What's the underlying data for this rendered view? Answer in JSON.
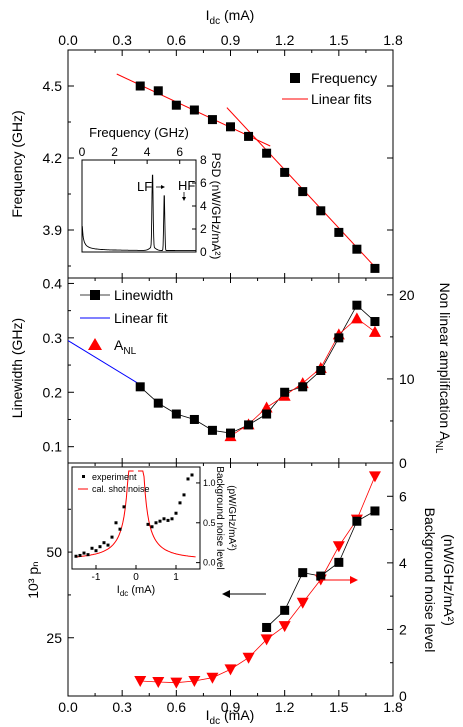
{
  "figure": {
    "top_axis_label": "I_dc (mA)",
    "bottom_axis_label": "I_dc (mA)",
    "x_ticks": [
      "0.0",
      "0.3",
      "0.6",
      "0.9",
      "1.2",
      "1.5",
      "1.8"
    ]
  },
  "chart_data": [
    {
      "type": "scatter",
      "panel": "top",
      "ylabel": "Frequency (GHz)",
      "xlim": [
        0,
        1.8
      ],
      "ylim": [
        3.7,
        4.65
      ],
      "y_ticks": [
        3.9,
        4.2,
        4.5
      ],
      "legend": [
        "Frequency",
        "Linear fits"
      ],
      "legend_position": "top-right",
      "series": [
        {
          "name": "Frequency",
          "x": [
            0.4,
            0.5,
            0.6,
            0.7,
            0.8,
            0.9,
            1.0,
            1.1,
            1.2,
            1.3,
            1.4,
            1.5,
            1.6,
            1.7
          ],
          "y": [
            4.5,
            4.48,
            4.42,
            4.4,
            4.36,
            4.33,
            4.29,
            4.22,
            4.14,
            4.06,
            3.98,
            3.89,
            3.82,
            3.74
          ]
        }
      ],
      "fits": [
        {
          "name": "Linear fits",
          "x": [
            0.27,
            1.12
          ],
          "y": [
            4.55,
            4.25
          ]
        },
        {
          "name": "Linear fits",
          "x": [
            0.88,
            1.72
          ],
          "y": [
            4.41,
            3.73
          ]
        }
      ],
      "inset": {
        "type": "line",
        "xlabel": "Frequency (GHz)",
        "ylabel": "PSD (nW/GHz/mA²)",
        "xlim": [
          0,
          7
        ],
        "ylim": [
          0,
          8
        ],
        "x_ticks": [
          "0",
          "2",
          "4",
          "6"
        ],
        "y_ticks": [
          "0",
          "2",
          "4",
          "6",
          "8"
        ],
        "annotations": [
          "LF",
          "HF"
        ]
      }
    },
    {
      "type": "line",
      "panel": "middle",
      "ylabel": "Linewidth (GHz)",
      "y2label": "Non linear amplification A_NL",
      "xlim": [
        0,
        1.8
      ],
      "ylim": [
        0.07,
        0.41
      ],
      "y_ticks": [
        0.1,
        0.2,
        0.3,
        0.4
      ],
      "y2lim": [
        0,
        22
      ],
      "y2_ticks": [
        0,
        10,
        20
      ],
      "legend": [
        "Linewidth",
        "Linear fit",
        "A_NL"
      ],
      "legend_position": "top-left",
      "series": [
        {
          "name": "Linewidth",
          "x": [
            0.4,
            0.5,
            0.6,
            0.7,
            0.8,
            0.9,
            1.0,
            1.1,
            1.2,
            1.3,
            1.4,
            1.5,
            1.6,
            1.7
          ],
          "y": [
            0.21,
            0.18,
            0.16,
            0.15,
            0.13,
            0.125,
            0.14,
            0.16,
            0.2,
            0.21,
            0.24,
            0.3,
            0.36,
            0.33
          ]
        },
        {
          "name": "A_NL",
          "axis": "right",
          "x": [
            0.9,
            1.0,
            1.1,
            1.2,
            1.3,
            1.4,
            1.5,
            1.6,
            1.7
          ],
          "y": [
            3.2,
            4.6,
            6.6,
            8.0,
            9.5,
            11.3,
            15.3,
            17.2,
            15.6
          ]
        }
      ],
      "fits": [
        {
          "name": "Linear fit",
          "x": [
            0.0,
            0.4
          ],
          "y": [
            0.295,
            0.214
          ]
        }
      ]
    },
    {
      "type": "line",
      "panel": "bottom",
      "ylabel": "10³ pₙ",
      "y2label": "Background noise level (nW/GHz/mA²)",
      "xlim": [
        0,
        1.8
      ],
      "ylim": [
        8,
        76
      ],
      "y_ticks": [
        25,
        50
      ],
      "y2lim": [
        0,
        7
      ],
      "y2_ticks": [
        0,
        2,
        4,
        6
      ],
      "series": [
        {
          "name": "10³ pₙ",
          "x": [
            1.1,
            1.2,
            1.3,
            1.4,
            1.5,
            1.6,
            1.7
          ],
          "y": [
            28,
            33,
            44,
            43,
            47,
            59,
            62
          ]
        },
        {
          "name": "Background noise level",
          "axis": "right",
          "x": [
            0.4,
            0.5,
            0.6,
            0.7,
            0.8,
            0.9,
            1.0,
            1.1,
            1.2,
            1.3,
            1.4,
            1.5,
            1.6,
            1.7
          ],
          "y": [
            0.45,
            0.42,
            0.4,
            0.45,
            0.55,
            0.8,
            1.15,
            1.7,
            2.1,
            2.8,
            3.5,
            4.5,
            5.3,
            6.6
          ]
        }
      ],
      "inset": {
        "type": "scatter",
        "xlabel": "I_dc (mA)",
        "ylabel": "Background noise level (pW/GHz/mA²)",
        "xlim": [
          -1.6,
          1.6
        ],
        "ylim": [
          -0.08,
          1.2
        ],
        "x_ticks": [
          "-1",
          "0",
          "1"
        ],
        "y_ticks": [
          "0.0",
          "0.5",
          "1.0"
        ],
        "legend": [
          "experiment",
          "cal. shot noise"
        ]
      }
    }
  ]
}
